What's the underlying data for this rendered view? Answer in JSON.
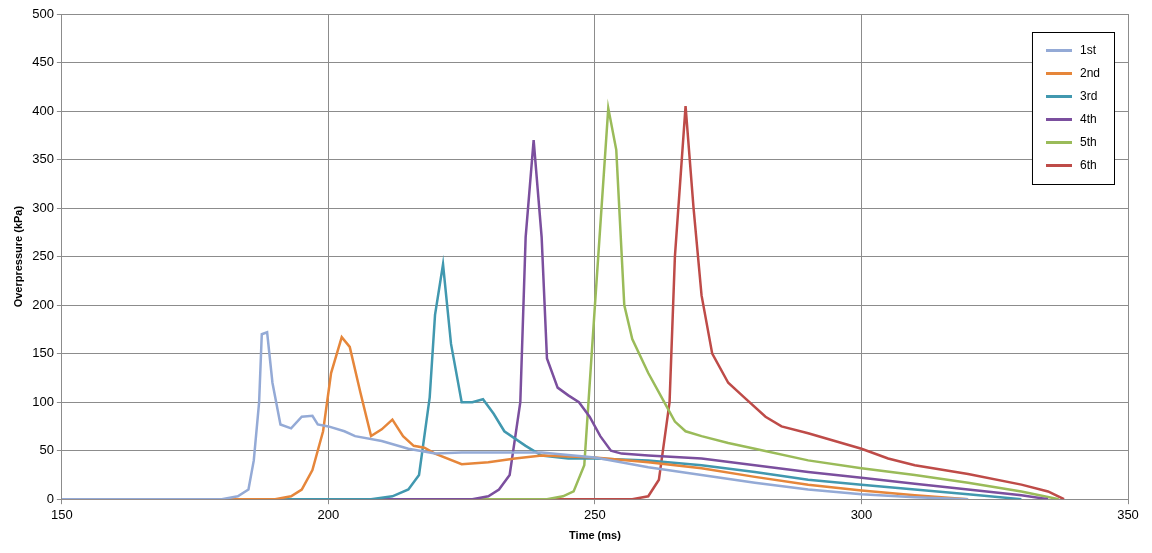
{
  "chart_data": {
    "type": "line",
    "x_label": "Time (ms)",
    "y_label": "Overpressure (kPa)",
    "xlim": [
      150,
      350
    ],
    "xticks": [
      150,
      200,
      250,
      300,
      350
    ],
    "ylim": [
      0,
      500
    ],
    "yticks": [
      0,
      50,
      100,
      150,
      200,
      250,
      300,
      350,
      400,
      450,
      500
    ],
    "grid": true,
    "legend": "top-right",
    "series": [
      {
        "name": "1st",
        "color": "#94aad6",
        "x": [
          150,
          180,
          183,
          185,
          186,
          187,
          187.5,
          188.5,
          189.5,
          191,
          193,
          195,
          197,
          198,
          200,
          203,
          205,
          210,
          215,
          220,
          225,
          240,
          250,
          260,
          270,
          280,
          290,
          300,
          310,
          320
        ],
        "values": [
          0,
          0,
          3,
          10,
          40,
          100,
          170,
          172,
          120,
          77,
          73,
          85,
          86,
          77,
          75,
          70,
          65,
          60,
          52,
          47,
          48,
          48,
          43,
          33,
          25,
          17,
          10,
          5,
          2,
          0
        ]
      },
      {
        "name": "2nd",
        "color": "#e6863a",
        "x": [
          150,
          190,
          193,
          195,
          197,
          199,
          200.5,
          202.5,
          204,
          206,
          208,
          210,
          212,
          214,
          216,
          218,
          220,
          225,
          230,
          235,
          240,
          250,
          260,
          270,
          280,
          290,
          300,
          310,
          320
        ],
        "values": [
          0,
          0,
          3,
          10,
          30,
          70,
          130,
          167,
          157,
          110,
          65,
          72,
          82,
          65,
          55,
          53,
          47,
          36,
          38,
          42,
          45,
          43,
          38,
          32,
          23,
          15,
          9,
          4,
          0
        ]
      },
      {
        "name": "3rd",
        "color": "#4198af",
        "x": [
          150,
          208,
          212,
          215,
          217,
          219,
          220,
          221.5,
          223,
          225,
          227,
          229,
          231,
          233,
          237,
          240,
          245,
          250,
          260,
          270,
          280,
          290,
          300,
          310,
          320,
          330
        ],
        "values": [
          0,
          0,
          3,
          10,
          25,
          105,
          190,
          242,
          160,
          100,
          100,
          103,
          88,
          70,
          55,
          45,
          42,
          42,
          40,
          35,
          28,
          20,
          15,
          10,
          5,
          0
        ]
      },
      {
        "name": "4th",
        "color": "#7b4f9e",
        "x": [
          150,
          227,
          230,
          232,
          234,
          236,
          237,
          238.5,
          240,
          241,
          243,
          245,
          247,
          249,
          251,
          253,
          255,
          260,
          270,
          280,
          290,
          300,
          310,
          320,
          330,
          335
        ],
        "values": [
          0,
          0,
          3,
          10,
          25,
          100,
          270,
          370,
          270,
          145,
          115,
          107,
          100,
          85,
          65,
          50,
          47,
          45,
          42,
          35,
          28,
          22,
          16,
          10,
          4,
          0
        ]
      },
      {
        "name": "5th",
        "color": "#9abb59",
        "x": [
          150,
          241,
          244,
          246,
          248,
          250,
          252.5,
          254,
          255.5,
          257,
          260,
          263,
          265,
          267,
          270,
          275,
          280,
          290,
          300,
          310,
          320,
          330,
          337
        ],
        "values": [
          0,
          0,
          3,
          8,
          35,
          200,
          403,
          360,
          200,
          165,
          130,
          100,
          80,
          70,
          65,
          58,
          52,
          40,
          32,
          25,
          17,
          8,
          0
        ]
      },
      {
        "name": "6th",
        "color": "#be4b48",
        "x": [
          150,
          257,
          260,
          262,
          264,
          265,
          267,
          268.5,
          270,
          272,
          275,
          278,
          282,
          285,
          290,
          295,
          300,
          305,
          310,
          320,
          330,
          335,
          338
        ],
        "values": [
          0,
          0,
          3,
          20,
          100,
          250,
          405,
          300,
          210,
          150,
          120,
          105,
          85,
          75,
          68,
          60,
          52,
          42,
          35,
          26,
          15,
          8,
          0
        ]
      }
    ]
  }
}
